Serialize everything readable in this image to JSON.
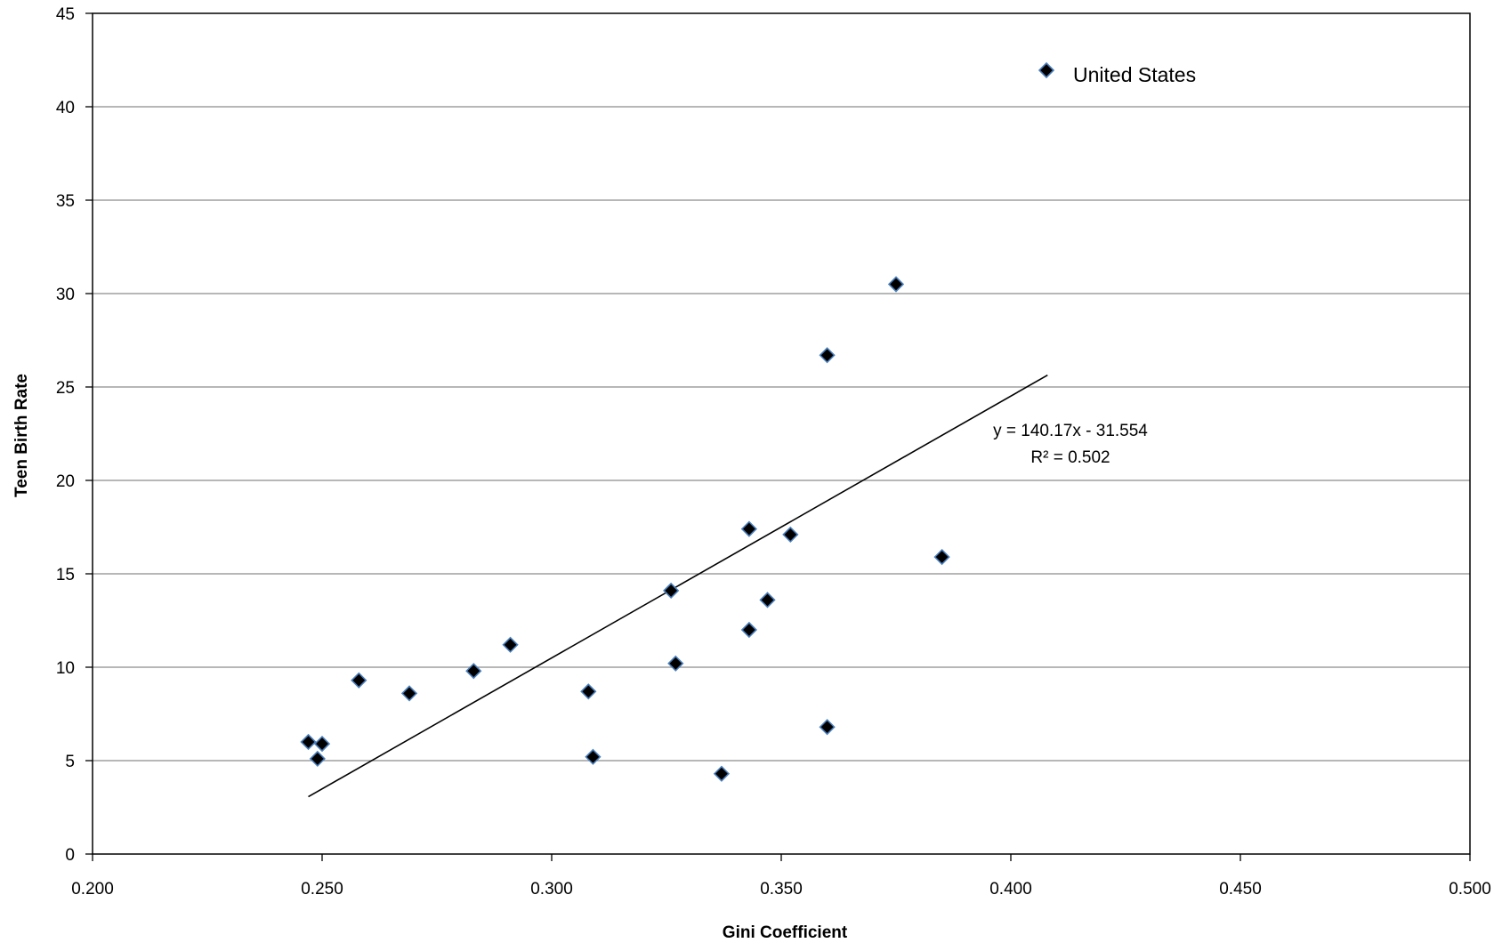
{
  "chart_data": {
    "type": "scatter",
    "xlabel": "Gini Coefficient",
    "ylabel": "Teen Birth Rate",
    "xlim": [
      0.2,
      0.5
    ],
    "ylim": [
      0,
      45
    ],
    "x_ticks": [
      "0.200",
      "0.250",
      "0.300",
      "0.350",
      "0.400",
      "0.450",
      "0.500"
    ],
    "y_ticks": [
      "0",
      "5",
      "10",
      "15",
      "20",
      "25",
      "30",
      "35",
      "40",
      "45"
    ],
    "grid": "horizontal",
    "legend_position": "top-right",
    "series": [
      {
        "name": "United States",
        "marker": "diamond",
        "color": "#000000",
        "edge_color": "#4a7ebb",
        "points": [
          {
            "x": 0.247,
            "y": 6.0
          },
          {
            "x": 0.249,
            "y": 5.1
          },
          {
            "x": 0.25,
            "y": 5.9
          },
          {
            "x": 0.258,
            "y": 9.3
          },
          {
            "x": 0.269,
            "y": 8.6
          },
          {
            "x": 0.283,
            "y": 9.8
          },
          {
            "x": 0.291,
            "y": 11.2
          },
          {
            "x": 0.308,
            "y": 8.7
          },
          {
            "x": 0.309,
            "y": 5.2
          },
          {
            "x": 0.326,
            "y": 14.1
          },
          {
            "x": 0.327,
            "y": 10.2
          },
          {
            "x": 0.337,
            "y": 4.3
          },
          {
            "x": 0.343,
            "y": 17.4
          },
          {
            "x": 0.343,
            "y": 12.0
          },
          {
            "x": 0.347,
            "y": 13.6
          },
          {
            "x": 0.352,
            "y": 17.1
          },
          {
            "x": 0.36,
            "y": 26.7
          },
          {
            "x": 0.36,
            "y": 6.8
          },
          {
            "x": 0.375,
            "y": 30.5
          },
          {
            "x": 0.385,
            "y": 15.9
          }
        ]
      }
    ],
    "trendline": {
      "slope": 140.17,
      "intercept": -31.554,
      "x_start": 0.247,
      "x_end": 0.408,
      "equation_label": "y = 140.17x - 31.554",
      "r2_label": "R² = 0.502"
    }
  }
}
